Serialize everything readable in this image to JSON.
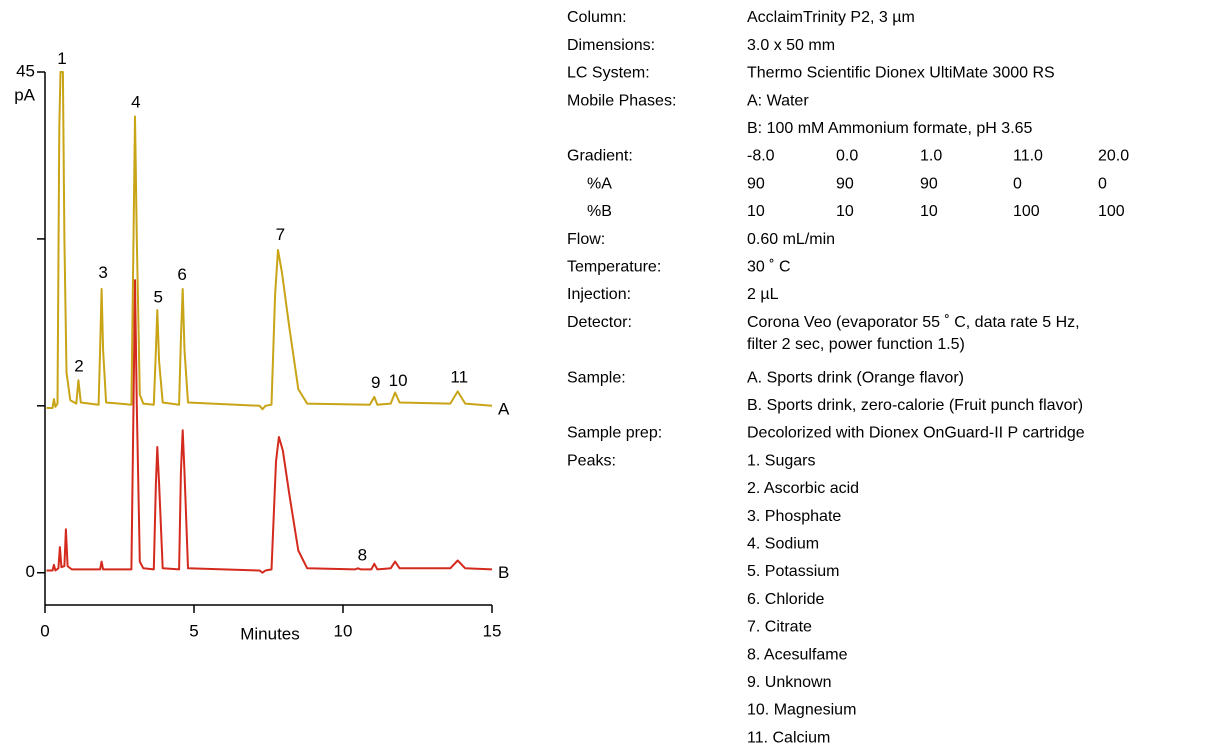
{
  "chart_data": {
    "type": "line",
    "ylabel": "pA",
    "xlabel": "Minutes",
    "xlim": [
      0,
      15
    ],
    "xticks": [
      0,
      5,
      10,
      15
    ],
    "ylim": [
      -2.9,
      45
    ],
    "yticks": [
      0,
      45
    ],
    "yminorticks": [
      15,
      30
    ],
    "series": [
      {
        "name": "A",
        "color": "#c8a416",
        "x": [
          0.05,
          0.25,
          0.3,
          0.35,
          0.42,
          0.48,
          0.52,
          0.6,
          0.65,
          0.72,
          0.85,
          1.05,
          1.12,
          1.2,
          1.8,
          1.85,
          1.9,
          1.95,
          2.05,
          2.9,
          2.97,
          3.02,
          3.08,
          3.18,
          3.3,
          3.65,
          3.72,
          3.77,
          3.83,
          3.95,
          4.5,
          4.56,
          4.62,
          4.68,
          4.8,
          7.2,
          7.3,
          7.4,
          7.6,
          7.72,
          7.82,
          7.95,
          8.2,
          8.5,
          8.8,
          10.9,
          11.05,
          11.15,
          11.6,
          11.75,
          11.9,
          13.6,
          13.85,
          14.1,
          15
        ],
        "values": [
          14.8,
          14.8,
          15.6,
          14.9,
          15.2,
          40,
          45,
          45,
          30,
          18,
          15.5,
          15.2,
          17.3,
          15.3,
          15.1,
          20,
          25.5,
          20,
          15.3,
          15.1,
          30,
          41,
          30,
          16,
          15.2,
          15.1,
          20,
          23.6,
          19,
          15.3,
          15.1,
          21,
          25.5,
          20,
          15.3,
          15.0,
          14.7,
          15.0,
          15.1,
          25,
          29,
          27,
          22,
          16.5,
          15.2,
          15.1,
          15.8,
          15.1,
          15.2,
          16.2,
          15.3,
          15.2,
          16.3,
          15.2,
          15.0
        ]
      },
      {
        "name": "B",
        "color": "#d42a1e",
        "x": [
          0.05,
          0.25,
          0.3,
          0.35,
          0.45,
          0.5,
          0.55,
          0.65,
          0.7,
          0.76,
          0.9,
          1.85,
          1.9,
          1.95,
          2.9,
          2.97,
          3.02,
          3.08,
          3.18,
          3.3,
          3.65,
          3.72,
          3.77,
          3.83,
          3.95,
          4.5,
          4.56,
          4.62,
          4.68,
          4.8,
          7.2,
          7.3,
          7.4,
          7.6,
          7.75,
          7.85,
          7.98,
          8.2,
          8.5,
          8.8,
          10.4,
          10.5,
          10.6,
          10.95,
          11.05,
          11.15,
          11.6,
          11.75,
          11.9,
          13.6,
          13.85,
          14.1,
          15
        ],
        "values": [
          0.2,
          0.2,
          0.7,
          0.2,
          0.4,
          2.3,
          0.5,
          0.6,
          3.9,
          0.6,
          0.3,
          0.3,
          1.0,
          0.3,
          0.3,
          15,
          26.3,
          15,
          1,
          0.4,
          0.3,
          8,
          11.3,
          8,
          0.4,
          0.3,
          9,
          12.8,
          9,
          0.4,
          0.2,
          0.0,
          0.2,
          0.3,
          10,
          12.2,
          11,
          7,
          2,
          0.4,
          0.3,
          0.4,
          0.3,
          0.3,
          0.8,
          0.3,
          0.4,
          1.0,
          0.4,
          0.4,
          1.1,
          0.4,
          0.3
        ]
      }
    ],
    "annotations": [
      {
        "text": "1",
        "x": 0.57,
        "y": 46.1
      },
      {
        "text": "2",
        "x": 1.14,
        "y": 18.5
      },
      {
        "text": "3",
        "x": 1.95,
        "y": 26.9
      },
      {
        "text": "4",
        "x": 3.05,
        "y": 42.2
      },
      {
        "text": "5",
        "x": 3.8,
        "y": 24.7
      },
      {
        "text": "6",
        "x": 4.6,
        "y": 26.7
      },
      {
        "text": "7",
        "x": 7.9,
        "y": 30.3
      },
      {
        "text": "8",
        "x": 10.65,
        "y": 1.5
      },
      {
        "text": "9",
        "x": 11.1,
        "y": 17.0
      },
      {
        "text": "10",
        "x": 11.85,
        "y": 17.2
      },
      {
        "text": "11",
        "x": 13.9,
        "y": 17.5
      }
    ]
  },
  "info": {
    "rows": [
      {
        "label": "Column:",
        "text": [
          "AcclaimTrinity P2, 3 µm"
        ]
      },
      {
        "label": "Dimensions:",
        "text": [
          "3.0 x 50 mm"
        ]
      },
      {
        "label": "LC System:",
        "text": [
          "Thermo Scientific Dionex UltiMate 3000 RS"
        ]
      },
      {
        "label": "Mobile Phases:",
        "text": [
          "A: Water"
        ]
      },
      {
        "text": [
          "B: 100 mM Ammonium formate, pH 3.65"
        ]
      },
      {
        "label": "Gradient:",
        "cells": [
          "-8.0",
          "0.0",
          "1.0",
          "11.0",
          "20.0"
        ]
      },
      {
        "label": "%A",
        "cells": [
          "90",
          "90",
          "90",
          "0",
          "0"
        ]
      },
      {
        "label": "%B",
        "cells": [
          "10",
          "10",
          "10",
          "100",
          "100"
        ]
      },
      {
        "label": "Flow:",
        "text": [
          "0.60 mL/min"
        ]
      },
      {
        "label": "Temperature:",
        "text": [
          "30 ˚ C"
        ]
      },
      {
        "label": "Injection:",
        "text": [
          "2 µL"
        ]
      },
      {
        "label": "Detector:",
        "text": [
          "Corona Veo  (evaporator 55 ˚ C, data rate 5 Hz,",
          "filter 2 sec, power function 1.5)"
        ]
      },
      {
        "label": "Sample:",
        "text": [
          "A. Sports drink (Orange flavor)"
        ]
      },
      {
        "text": [
          "B. Sports drink, zero-calorie (Fruit punch flavor)"
        ]
      },
      {
        "label": "Sample prep:",
        "text": [
          "Decolorized with Dionex OnGuard-II P cartridge"
        ]
      },
      {
        "label": "Peaks:",
        "text": [
          "1. Sugars"
        ]
      },
      {
        "text": [
          "2. Ascorbic acid"
        ]
      },
      {
        "text": [
          "3. Phosphate"
        ]
      },
      {
        "text": [
          "4. Sodium"
        ]
      },
      {
        "text": [
          "5. Potassium"
        ]
      },
      {
        "text": [
          "6. Chloride"
        ]
      },
      {
        "text": [
          "7. Citrate"
        ]
      },
      {
        "text": [
          "8. Acesulfame"
        ]
      },
      {
        "text": [
          "9. Unknown"
        ]
      },
      {
        "text": [
          "10. Magnesium"
        ]
      },
      {
        "text": [
          "11. Calcium"
        ]
      }
    ]
  }
}
